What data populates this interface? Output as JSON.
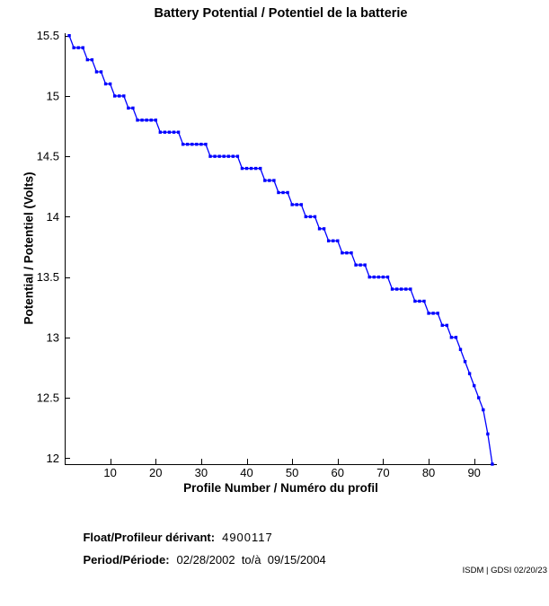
{
  "chart_data": {
    "type": "line",
    "title": "Battery Potential / Potentiel de la batterie",
    "xlabel": "Profile Number / Numéro du profil",
    "ylabel": "Potential / Potentiel (Volts)",
    "line_color": "#0000FF",
    "marker": "dot",
    "grid": false,
    "legend": "none",
    "xlim": [
      0,
      95
    ],
    "ylim": [
      11.95,
      15.52
    ],
    "xticks": [
      10,
      20,
      30,
      40,
      50,
      60,
      70,
      80,
      90
    ],
    "xtick_labels": [
      "10",
      "20",
      "30",
      "40",
      "50",
      "60",
      "70",
      "80",
      "90"
    ],
    "yticks": [
      12,
      12.5,
      13,
      13.5,
      14,
      14.5,
      15,
      15.5
    ],
    "ytick_labels": [
      "12",
      "12.5",
      "13",
      "13.5",
      "14",
      "14.5",
      "15",
      "15.5"
    ],
    "x": [
      1,
      2,
      3,
      4,
      5,
      6,
      7,
      8,
      9,
      10,
      11,
      12,
      13,
      14,
      15,
      16,
      17,
      18,
      19,
      20,
      21,
      22,
      23,
      24,
      25,
      26,
      27,
      28,
      29,
      30,
      31,
      32,
      33,
      34,
      35,
      36,
      37,
      38,
      39,
      40,
      41,
      42,
      43,
      44,
      45,
      46,
      47,
      48,
      49,
      50,
      51,
      52,
      53,
      54,
      55,
      56,
      57,
      58,
      59,
      60,
      61,
      62,
      63,
      64,
      65,
      66,
      67,
      68,
      69,
      70,
      71,
      72,
      73,
      74,
      75,
      76,
      77,
      78,
      79,
      80,
      81,
      82,
      83,
      84,
      85,
      86,
      87,
      88,
      89,
      90,
      91,
      92,
      93,
      94
    ],
    "y": [
      15.5,
      15.4,
      15.4,
      15.4,
      15.3,
      15.3,
      15.2,
      15.2,
      15.1,
      15.1,
      15.0,
      15.0,
      15.0,
      14.9,
      14.9,
      14.8,
      14.8,
      14.8,
      14.8,
      14.8,
      14.7,
      14.7,
      14.7,
      14.7,
      14.7,
      14.6,
      14.6,
      14.6,
      14.6,
      14.6,
      14.6,
      14.5,
      14.5,
      14.5,
      14.5,
      14.5,
      14.5,
      14.5,
      14.4,
      14.4,
      14.4,
      14.4,
      14.4,
      14.3,
      14.3,
      14.3,
      14.2,
      14.2,
      14.2,
      14.1,
      14.1,
      14.1,
      14.0,
      14.0,
      14.0,
      13.9,
      13.9,
      13.8,
      13.8,
      13.8,
      13.7,
      13.7,
      13.7,
      13.6,
      13.6,
      13.6,
      13.5,
      13.5,
      13.5,
      13.5,
      13.5,
      13.4,
      13.4,
      13.4,
      13.4,
      13.4,
      13.3,
      13.3,
      13.3,
      13.2,
      13.2,
      13.2,
      13.1,
      13.1,
      13.0,
      13.0,
      12.9,
      12.8,
      12.7,
      12.6,
      12.5,
      12.4,
      12.2,
      11.95
    ]
  },
  "info": {
    "float_label": "Float/Profileur dérivant:",
    "float_value": "4900117",
    "period_label": "Period/Période:",
    "period_value": "02/28/2002  to/à  09/15/2004"
  },
  "stamp": "ISDM | GDSI 02/20/23"
}
